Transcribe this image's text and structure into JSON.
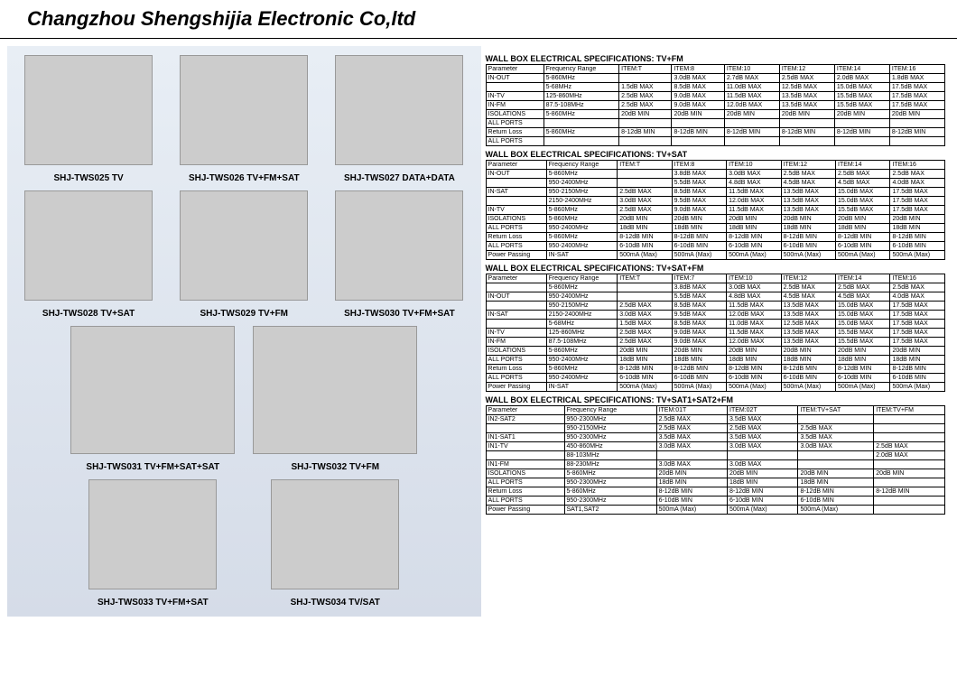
{
  "company": "Changzhou Shengshijia Electronic Co,ltd",
  "products": [
    {
      "label": "SHJ-TWS025 TV"
    },
    {
      "label": "SHJ-TWS026 TV+FM+SAT"
    },
    {
      "label": "SHJ-TWS027 DATA+DATA"
    },
    {
      "label": "SHJ-TWS028 TV+SAT"
    },
    {
      "label": "SHJ-TWS029 TV+FM"
    },
    {
      "label": "SHJ-TWS030 TV+FM+SAT"
    },
    {
      "label": "SHJ-TWS031 TV+FM+SAT+SAT"
    },
    {
      "label": "SHJ-TWS032 TV+FM"
    },
    {
      "label": "SHJ-TWS033 TV+FM+SAT"
    },
    {
      "label": "SHJ-TWS034 TV/SAT"
    }
  ],
  "tables": [
    {
      "title": "WALL BOX ELECTRICAL SPECIFICATIONS:  TV+FM",
      "cols": [
        "Parameter",
        "Frequency Range",
        "ITEM:T",
        "ITEM:8",
        "ITEM:10",
        "ITEM:12",
        "ITEM:14",
        "ITEM:16"
      ],
      "rows": [
        [
          "IN-OUT",
          "5-860MHz",
          "",
          "3.0dB MAX",
          "2.7dB MAX",
          "2.5dB MAX",
          "2.0dB MAX",
          "1.8dB MAX"
        ],
        [
          "",
          "5-68MHz",
          "1.5dB MAX",
          "8.5dB MAX",
          "11.0dB MAX",
          "12.5dB MAX",
          "15.0dB MAX",
          "17.5dB MAX"
        ],
        [
          "IN-TV",
          "125-860MHz",
          "2.5dB MAX",
          "9.0dB MAX",
          "11.5dB MAX",
          "13.5dB MAX",
          "15.5dB MAX",
          "17.5dB MAX"
        ],
        [
          "IN-FM",
          "87.5-108MHz",
          "2.5dB MAX",
          "9.0dB MAX",
          "12.0dB MAX",
          "13.5dB MAX",
          "15.5dB MAX",
          "17.5dB MAX"
        ],
        [
          "ISOLATIONS",
          "5-860MHz",
          "20dB MIN",
          "20dB MIN",
          "20dB MIN",
          "20dB MIN",
          "20dB MIN",
          "20dB MIN"
        ],
        [
          "ALL PORTS",
          "",
          "",
          "",
          "",
          "",
          "",
          ""
        ],
        [
          "Return Loss",
          "5-860MHz",
          "8-12dB MIN",
          "8-12dB MIN",
          "8-12dB MIN",
          "8-12dB MIN",
          "8-12dB MIN",
          "8-12dB MIN"
        ],
        [
          "ALL PORTS",
          "",
          "",
          "",
          "",
          "",
          "",
          ""
        ]
      ]
    },
    {
      "title": "WALL BOX ELECTRICAL SPECIFICATIONS:  TV+SAT",
      "cols": [
        "Parameter",
        "Frequency Range",
        "ITEM:T",
        "ITEM:8",
        "ITEM:10",
        "ITEM:12",
        "ITEM:14",
        "ITEM:16"
      ],
      "rows": [
        [
          "IN-OUT",
          "5-860MHz",
          "",
          "3.8dB MAX",
          "3.0dB MAX",
          "2.5dB MAX",
          "2.5dB MAX",
          "2.5dB MAX"
        ],
        [
          "",
          "950-2400MHz",
          "",
          "5.5dB MAX",
          "4.8dB MAX",
          "4.5dB MAX",
          "4.5dB MAX",
          "4.0dB MAX"
        ],
        [
          "IN-SAT",
          "950-2150MHz",
          "2.5dB MAX",
          "8.5dB MAX",
          "11.5dB MAX",
          "13.5dB MAX",
          "15.0dB MAX",
          "17.5dB MAX"
        ],
        [
          "",
          "2150-2400MHz",
          "3.0dB MAX",
          "9.5dB MAX",
          "12.0dB MAX",
          "13.5dB MAX",
          "15.0dB MAX",
          "17.5dB MAX"
        ],
        [
          "IN-TV",
          "5-860MHz",
          "2.5dB MAX",
          "9.0dB MAX",
          "11.5dB MAX",
          "13.5dB MAX",
          "15.5dB MAX",
          "17.5dB MAX"
        ],
        [
          "ISOLATIONS",
          "5-860MHz",
          "20dB MIN",
          "20dB MIN",
          "20dB MIN",
          "20dB MIN",
          "20dB MIN",
          "20dB MIN"
        ],
        [
          "ALL PORTS",
          "950-2400MHz",
          "18dB MIN",
          "18dB MIN",
          "18dB MIN",
          "18dB MIN",
          "18dB MIN",
          "18dB MIN"
        ],
        [
          "Return Loss",
          "5-860MHz",
          "8-12dB MIN",
          "8-12dB MIN",
          "8-12dB MIN",
          "8-12dB MIN",
          "8-12dB MIN",
          "8-12dB MIN"
        ],
        [
          "ALL PORTS",
          "950-2400MHz",
          "6-10dB MIN",
          "6-10dB MIN",
          "6-10dB MIN",
          "6-10dB MIN",
          "6-10dB MIN",
          "6-10dB MIN"
        ],
        [
          "Power Passing",
          "IN-SAT",
          "500mA (Max)",
          "500mA (Max)",
          "500mA (Max)",
          "500mA (Max)",
          "500mA (Max)",
          "500mA (Max)"
        ]
      ]
    },
    {
      "title": "WALL BOX ELECTRICAL SPECIFICATIONS:  TV+SAT+FM",
      "cols": [
        "Parameter",
        "Frequency Range",
        "ITEM:T",
        "ITEM:7",
        "ITEM:10",
        "ITEM:12",
        "ITEM:14",
        "ITEM:16"
      ],
      "rows": [
        [
          "",
          "5-860MHz",
          "",
          "3.8dB MAX",
          "3.0dB MAX",
          "2.5dB MAX",
          "2.5dB MAX",
          "2.5dB MAX"
        ],
        [
          "IN-OUT",
          "950-2400MHz",
          "",
          "5.5dB MAX",
          "4.8dB MAX",
          "4.5dB MAX",
          "4.5dB MAX",
          "4.0dB MAX"
        ],
        [
          "",
          "950-2150MHz",
          "2.5dB MAX",
          "8.5dB MAX",
          "11.5dB MAX",
          "13.5dB MAX",
          "15.0dB MAX",
          "17.5dB MAX"
        ],
        [
          "IN-SAT",
          "2150-2400MHz",
          "3.0dB MAX",
          "9.5dB MAX",
          "12.0dB MAX",
          "13.5dB MAX",
          "15.0dB MAX",
          "17.5dB MAX"
        ],
        [
          "",
          "5-68MHz",
          "1.5dB MAX",
          "8.5dB MAX",
          "11.0dB MAX",
          "12.5dB MAX",
          "15.0dB MAX",
          "17.5dB MAX"
        ],
        [
          "IN-TV",
          "125-860MHz",
          "2.5dB MAX",
          "9.0dB MAX",
          "11.5dB MAX",
          "13.5dB MAX",
          "15.5dB MAX",
          "17.5dB MAX"
        ],
        [
          "IN-FM",
          "87.5-108MHz",
          "2.5dB MAX",
          "9.0dB MAX",
          "12.0dB MAX",
          "13.5dB MAX",
          "15.5dB MAX",
          "17.5dB MAX"
        ],
        [
          "ISOLATIONS",
          "5-860MHz",
          "20dB MIN",
          "20dB MIN",
          "20dB MIN",
          "20dB MIN",
          "20dB MIN",
          "20dB MIN"
        ],
        [
          "ALL PORTS",
          "950-2400MHz",
          "18dB MIN",
          "18dB MIN",
          "18dB MIN",
          "18dB MIN",
          "18dB MIN",
          "18dB MIN"
        ],
        [
          "Return Loss",
          "5-860MHz",
          "8-12dB MIN",
          "8-12dB MIN",
          "8-12dB MIN",
          "8-12dB MIN",
          "8-12dB MIN",
          "8-12dB MIN"
        ],
        [
          "ALL PORTS",
          "950-2400MHz",
          "6-10dB MIN",
          "6-10dB MIN",
          "6-10dB MIN",
          "6-10dB MIN",
          "6-10dB MIN",
          "6-10dB MIN"
        ],
        [
          "Power Passing",
          "IN-SAT",
          "500mA (Max)",
          "500mA (Max)",
          "500mA (Max)",
          "500mA (Max)",
          "500mA (Max)",
          "500mA (Max)"
        ]
      ]
    },
    {
      "title": "WALL BOX ELECTRICAL SPECIFICATIONS:  TV+SAT1+SAT2+FM",
      "cols": [
        "Parameter",
        "Frequency Range",
        "ITEM:01T",
        "ITEM:02T",
        "ITEM:TV+SAT",
        "ITEM:TV+FM"
      ],
      "rows": [
        [
          "IN2-SAT2",
          "950-2300MHz",
          "2.5dB MAX",
          "3.5dB MAX",
          "",
          ""
        ],
        [
          "",
          "950-2150MHz",
          "2.5dB MAX",
          "2.5dB MAX",
          "2.5dB MAX",
          ""
        ],
        [
          "IN1-SAT1",
          "950-2300MHz",
          "3.5dB MAX",
          "3.5dB MAX",
          "3.5dB MAX",
          ""
        ],
        [
          "IN1-TV",
          "450-860MHz",
          "3.0dB MAX",
          "3.0dB MAX",
          "3.0dB MAX",
          "2.5dB MAX"
        ],
        [
          "",
          "88-103MHz",
          "",
          "",
          "",
          "2.0dB MAX"
        ],
        [
          "IN1-FM",
          "88-230MHz",
          "3.0dB MAX",
          "3.0dB MAX",
          "",
          ""
        ],
        [
          "ISOLATIONS",
          "5-860MHz",
          "20dB MIN",
          "20dB MIN",
          "20dB MIN",
          "20dB MIN"
        ],
        [
          "ALL PORTS",
          "950-2300MHz",
          "18dB MIN",
          "18dB MIN",
          "18dB MIN",
          ""
        ],
        [
          "Return Loss",
          "5-860MHz",
          "8-12dB MIN",
          "8-12dB MIN",
          "8-12dB MIN",
          "8-12dB MIN"
        ],
        [
          "ALL PORTS",
          "950-2300MHz",
          "6-10dB MIN",
          "6-10dB MIN",
          "6-10dB MIN",
          ""
        ],
        [
          "Power Passing",
          "SAT1,SAT2",
          "500mA (Max)",
          "500mA (Max)",
          "500mA (Max)",
          ""
        ]
      ]
    }
  ]
}
